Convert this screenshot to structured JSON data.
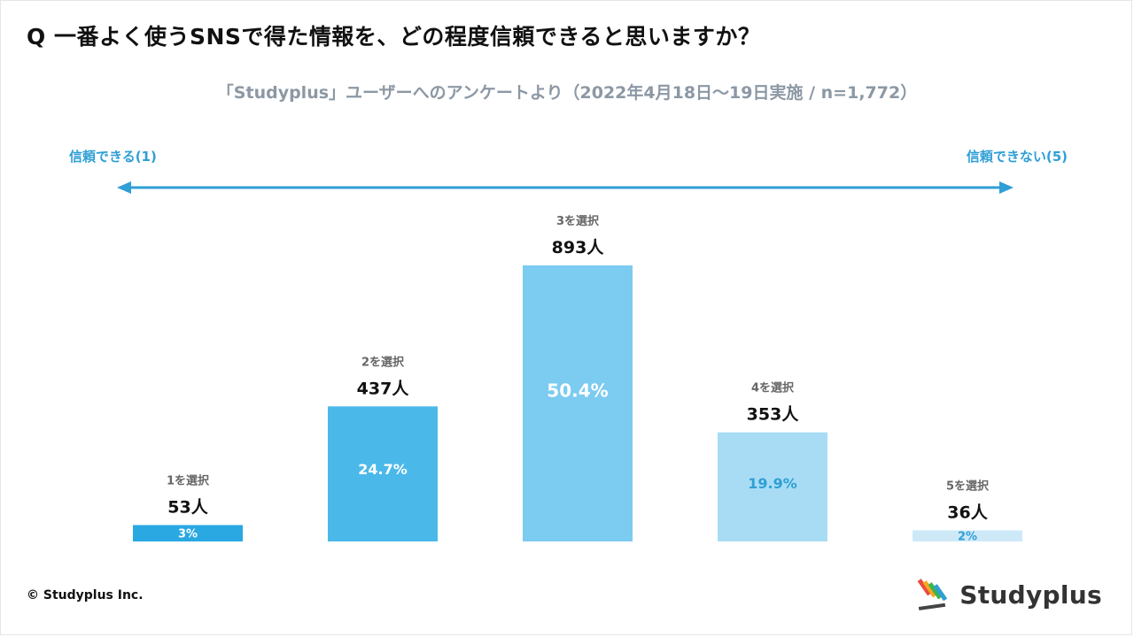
{
  "title": "Q 一番よく使うSNSで得た情報を、どの程度信頼できると思いますか？",
  "subtitle": "「Studyplus」ユーザーへのアンケートより（2022年4月18日〜19日実施 / n=1,772）",
  "scale": {
    "left_label": "信頼できる(1)",
    "right_label": "信頼できない(5)"
  },
  "footer": {
    "copyright": "© Studyplus Inc.",
    "brand": "Studyplus"
  },
  "colors": {
    "accent": "#2f9fd5",
    "bar_colors": [
      "#29a8e2",
      "#4bb8ea",
      "#7ccbf0",
      "#a8dcf5",
      "#cde9f8"
    ],
    "pct_colors": [
      "#ffffff",
      "#ffffff",
      "#ffffff",
      "#2f9fd5",
      "#2f9fd5"
    ]
  },
  "chart_data": {
    "type": "bar",
    "categories": [
      "1を選択",
      "2を選択",
      "3を選択",
      "4を選択",
      "5を選択"
    ],
    "values": [
      53,
      437,
      893,
      353,
      36
    ],
    "value_labels": [
      "53人",
      "437人",
      "893人",
      "353人",
      "36人"
    ],
    "percent_labels": [
      "3%",
      "24.7%",
      "50.4%",
      "19.9%",
      "2%"
    ],
    "percents": [
      3,
      24.7,
      50.4,
      19.9,
      2
    ],
    "title": "Q 一番よく使うSNSで得た情報を、どの程度信頼できると思いますか？",
    "xlabel": "",
    "ylabel": "",
    "grid": false,
    "legend": "none"
  }
}
